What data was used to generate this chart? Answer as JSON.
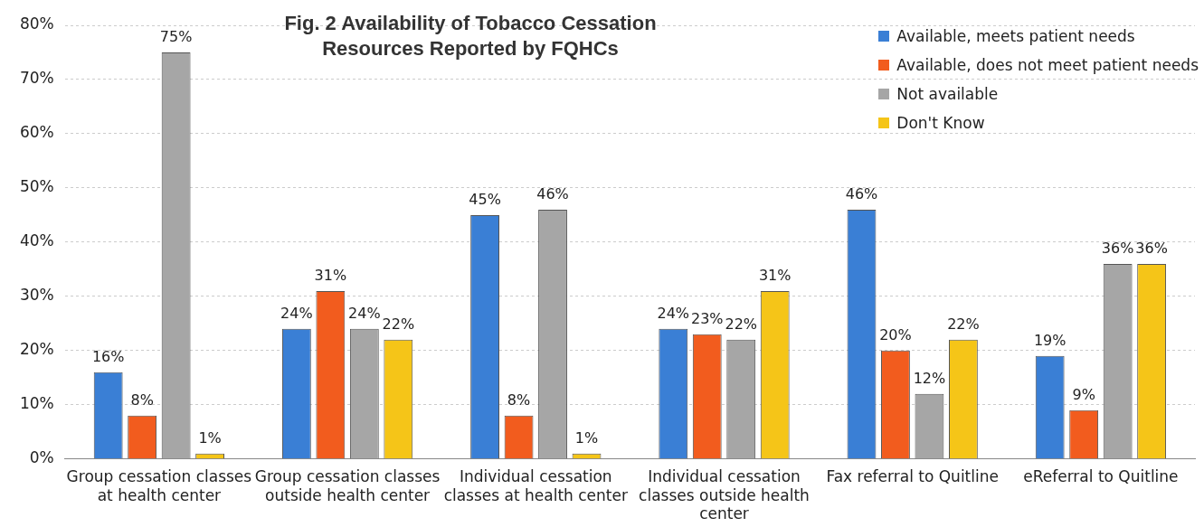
{
  "chart_data": {
    "type": "bar",
    "title": "Fig.  2 Availability of Tobacco Cessation\nResources Reported by FQHCs",
    "categories": [
      "Group cessation classes at health center",
      "Group cessation classes outside health center",
      "Individual cessation classes at health center",
      "Individual cessation classes outside health center",
      "Fax referral to Quitline",
      "eReferral to Quitline"
    ],
    "series": [
      {
        "name": "Available, meets patient needs",
        "color": "#3a7fd5",
        "values": [
          16,
          24,
          45,
          24,
          46,
          19
        ],
        "value_labels": [
          "16%",
          "24%",
          "45%",
          "24%",
          "46%",
          "19%"
        ]
      },
      {
        "name": "Available, does not meet patient needs",
        "color": "#f25c1e",
        "values": [
          8,
          31,
          8,
          23,
          20,
          9
        ],
        "value_labels": [
          "8%",
          "31%",
          "8%",
          "23%",
          "20%",
          "9%"
        ]
      },
      {
        "name": "Not available",
        "color": "#a6a6a6",
        "values": [
          75,
          24,
          46,
          22,
          12,
          36
        ],
        "value_labels": [
          "75%",
          "24%",
          "46%",
          "22%",
          "12%",
          "36%"
        ]
      },
      {
        "name": "Don't Know",
        "color": "#f5c518",
        "values": [
          1,
          22,
          1,
          31,
          22,
          36
        ],
        "value_labels": [
          "1%",
          "22%",
          "1%",
          "31%",
          "22%",
          "36%"
        ]
      }
    ],
    "ylim": [
      0,
      80
    ],
    "yticks": [
      {
        "value": 0,
        "label": "0%"
      },
      {
        "value": 10,
        "label": "10%"
      },
      {
        "value": 20,
        "label": "20%"
      },
      {
        "value": 30,
        "label": "30%"
      },
      {
        "value": 40,
        "label": "40%"
      },
      {
        "value": 50,
        "label": "50%"
      },
      {
        "value": 60,
        "label": "60%"
      },
      {
        "value": 70,
        "label": "70%"
      },
      {
        "value": 80,
        "label": "80%"
      }
    ],
    "grid": "y",
    "legend": "top right"
  }
}
